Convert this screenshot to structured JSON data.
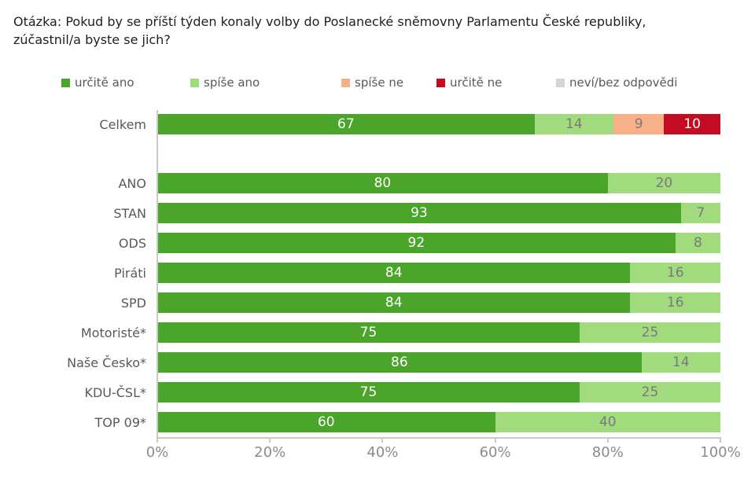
{
  "title": "Otázka: Pokud by se příští týden konaly volby do Poslanecké sněmovny Parlamentu České republiky,\nzúčastnil/a byste se jich?",
  "chart_data": {
    "type": "bar",
    "orientation": "horizontal",
    "stacked": true,
    "title": "Otázka: Pokud by se příští týden konaly volby do Poslanecké sněmovny Parlamentu České republiky, zúčastnil/a byste se jich?",
    "legend_position": "top",
    "xlim": [
      0,
      100
    ],
    "x_ticks": [
      "0%",
      "20%",
      "40%",
      "60%",
      "80%",
      "100%"
    ],
    "grid": false,
    "series": [
      "určitě ano",
      "spíše ano",
      "spíše ne",
      "určitě ne",
      "neví/bez odpovědi"
    ],
    "series_colors": [
      "#4ba52b",
      "#a2db7e",
      "#f8b089",
      "#c30b22",
      "#d5d5d5"
    ],
    "value_label_colors": [
      "#ffffff",
      "#7a7a7a",
      "#7a7a7a",
      "#ffffff",
      "#7a7a7a"
    ],
    "rows": [
      {
        "label": "Celkem",
        "values": [
          67,
          14,
          9,
          10,
          0
        ]
      },
      {
        "label": "ANO",
        "values": [
          80,
          20,
          0,
          0,
          0
        ]
      },
      {
        "label": "STAN",
        "values": [
          93,
          7,
          0,
          0,
          0
        ]
      },
      {
        "label": "ODS",
        "values": [
          92,
          8,
          0,
          0,
          0
        ]
      },
      {
        "label": "Piráti",
        "values": [
          84,
          16,
          0,
          0,
          0
        ]
      },
      {
        "label": "SPD",
        "values": [
          84,
          16,
          0,
          0,
          0
        ]
      },
      {
        "label": "Motoristé*",
        "values": [
          75,
          25,
          0,
          0,
          0
        ]
      },
      {
        "label": "Naše Česko*",
        "values": [
          86,
          14,
          0,
          0,
          0
        ]
      },
      {
        "label": "KDU-ČSL*",
        "values": [
          75,
          25,
          0,
          0,
          0
        ]
      },
      {
        "label": "TOP 09*",
        "values": [
          60,
          40,
          0,
          0,
          0
        ]
      }
    ]
  }
}
